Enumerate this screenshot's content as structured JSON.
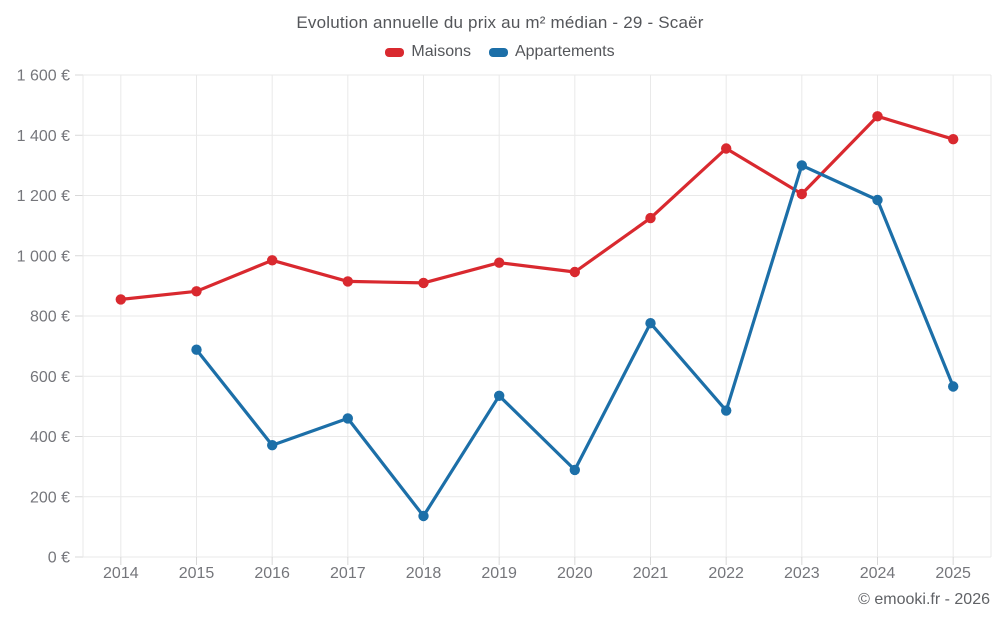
{
  "chart_data": {
    "type": "line",
    "title": "Evolution annuelle du prix au m² médian - 29 - Scaër",
    "categories": [
      "2014",
      "2015",
      "2016",
      "2017",
      "2018",
      "2019",
      "2020",
      "2021",
      "2022",
      "2023",
      "2024",
      "2025"
    ],
    "series": [
      {
        "name": "Maisons",
        "color": "#d9292f",
        "values": [
          855,
          882,
          985,
          915,
          910,
          977,
          946,
          1125,
          1356,
          1205,
          1463,
          1387
        ]
      },
      {
        "name": "Appartements",
        "color": "#1c6fa8",
        "values": [
          null,
          688,
          371,
          460,
          136,
          535,
          289,
          776,
          486,
          1300,
          1185,
          566
        ]
      }
    ],
    "ylim": [
      0,
      1600
    ],
    "ytick_step": 200,
    "ytick_suffix": "€",
    "xlabel": "",
    "ylabel": "",
    "grid": true,
    "legend_position": "top-center",
    "marker": "circle"
  },
  "footer": {
    "text": "© emooki.fr - 2026"
  },
  "colors": {
    "background": "#ffffff",
    "grid": "#e9e9e9",
    "tick": "#d8d8d8",
    "axis_text": "#75767b",
    "title_text": "#54565a",
    "footer_text": "#606266"
  }
}
